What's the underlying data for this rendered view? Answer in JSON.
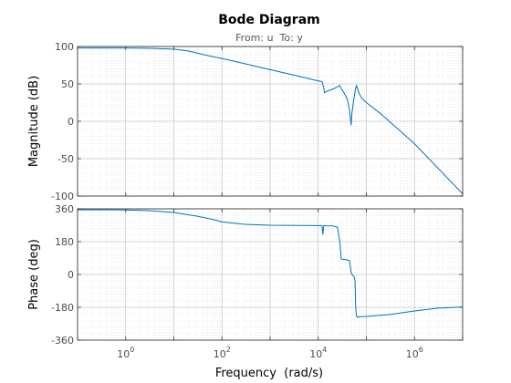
{
  "chart_data": {
    "type": "line",
    "title": "Bode Diagram",
    "subtitle": "From: u  To: y",
    "xlabel": "Frequency  (rad/s)",
    "x_scale": "log",
    "xlim": [
      0.1,
      10000000
    ],
    "x_ticks": [
      {
        "value": 1,
        "base": "10",
        "exp": "0"
      },
      {
        "value": 100,
        "base": "10",
        "exp": "2"
      },
      {
        "value": 10000,
        "base": "10",
        "exp": "4"
      },
      {
        "value": 1000000,
        "base": "10",
        "exp": "6"
      }
    ],
    "grid": true,
    "line_color": "#0072BD",
    "panels": [
      {
        "name": "magnitude",
        "ylabel": "Magnitude (dB)",
        "ylim": [
          -100,
          100
        ],
        "y_ticks": [
          "100",
          "50",
          "0",
          "-50",
          "-100"
        ],
        "y_tick_values": [
          100,
          50,
          0,
          -50,
          -100
        ],
        "series": [
          {
            "x": [
              0.1,
              1,
              3,
              10,
              20,
              50,
              100,
              300,
              1000,
              3000,
              10000,
              12000,
              13000,
              13500,
              15000,
              20000,
              25000,
              28000,
              30000,
              35000,
              40000,
              42000,
              45000,
              48000,
              50000,
              55000,
              60000,
              63000,
              65000,
              70000,
              80000,
              100000,
              200000,
              1000000,
              10000000
            ],
            "y": [
              98,
              98,
              97.5,
              96.5,
              94,
              88,
              84,
              77,
              69,
              62,
              54,
              53,
              45,
              38,
              40,
              43,
              46,
              48,
              44,
              37,
              30,
              24,
              14,
              -5,
              10,
              30,
              45,
              48,
              44,
              38,
              31,
              25,
              10,
              -30,
              -97
            ]
          }
        ]
      },
      {
        "name": "phase",
        "ylabel": "Phase (deg)",
        "ylim": [
          -360,
          360
        ],
        "y_ticks": [
          "360",
          "180",
          "0",
          "-180",
          "-360"
        ],
        "y_tick_values": [
          360,
          180,
          0,
          -180,
          -360
        ],
        "series": [
          {
            "x": [
              0.1,
              1,
              3,
              10,
              30,
              70,
              100,
              300,
              1000,
              10000,
              12000,
              12500,
              13000,
              14000,
              15000,
              20000,
              25000,
              27000,
              28000,
              30000,
              40000,
              45000,
              48000,
              52000,
              55000,
              58000,
              60000,
              62000,
              65000,
              70000,
              100000,
              300000,
              1000000,
              3000000,
              10000000
            ],
            "y": [
              355,
              354,
              350,
              340,
              320,
              300,
              288,
              275,
              270,
              268,
              268,
              220,
              267,
              268,
              267,
              266,
              260,
              210,
              180,
              85,
              80,
              75,
              10,
              -5,
              -10,
              -30,
              -180,
              -225,
              -235,
              -232,
              -230,
              -220,
              -200,
              -185,
              -178
            ]
          }
        ]
      }
    ]
  }
}
